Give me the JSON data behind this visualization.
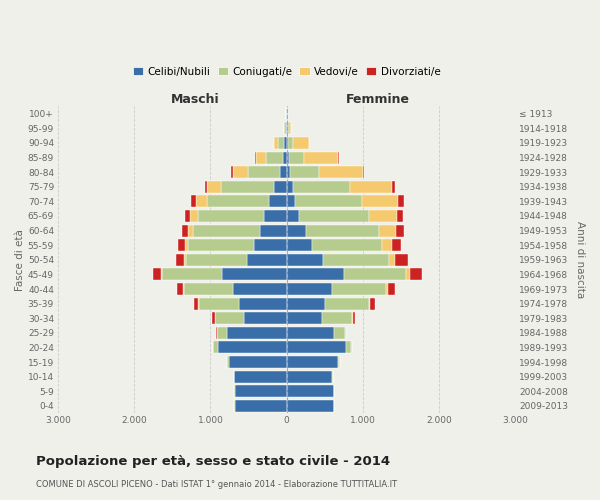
{
  "age_groups": [
    "0-4",
    "5-9",
    "10-14",
    "15-19",
    "20-24",
    "25-29",
    "30-34",
    "35-39",
    "40-44",
    "45-49",
    "50-54",
    "55-59",
    "60-64",
    "65-69",
    "70-74",
    "75-79",
    "80-84",
    "85-89",
    "90-94",
    "95-99",
    "100+"
  ],
  "birth_years": [
    "2009-2013",
    "2004-2008",
    "1999-2003",
    "1994-1998",
    "1989-1993",
    "1984-1988",
    "1979-1983",
    "1974-1978",
    "1969-1973",
    "1964-1968",
    "1959-1963",
    "1954-1958",
    "1949-1953",
    "1944-1948",
    "1939-1943",
    "1934-1938",
    "1929-1933",
    "1924-1928",
    "1919-1923",
    "1914-1918",
    "≤ 1913"
  ],
  "males": {
    "celibi": [
      680,
      680,
      690,
      760,
      900,
      780,
      560,
      620,
      700,
      850,
      520,
      430,
      350,
      290,
      230,
      160,
      80,
      50,
      30,
      10,
      5
    ],
    "coniugati": [
      5,
      5,
      5,
      20,
      60,
      130,
      380,
      530,
      650,
      780,
      800,
      860,
      880,
      870,
      820,
      700,
      430,
      220,
      80,
      20,
      5
    ],
    "vedovi": [
      0,
      0,
      0,
      2,
      5,
      5,
      5,
      10,
      15,
      20,
      30,
      40,
      70,
      110,
      140,
      180,
      200,
      130,
      50,
      10,
      2
    ],
    "divorziati": [
      0,
      0,
      0,
      2,
      5,
      10,
      30,
      60,
      80,
      110,
      100,
      100,
      80,
      70,
      60,
      30,
      15,
      10,
      5,
      0,
      0
    ]
  },
  "females": {
    "nubili": [
      620,
      620,
      600,
      670,
      780,
      620,
      460,
      510,
      600,
      760,
      480,
      330,
      250,
      160,
      110,
      80,
      40,
      30,
      20,
      10,
      5
    ],
    "coniugate": [
      5,
      5,
      5,
      25,
      70,
      150,
      400,
      570,
      700,
      810,
      870,
      930,
      960,
      920,
      880,
      750,
      380,
      200,
      70,
      20,
      5
    ],
    "vedove": [
      0,
      0,
      0,
      2,
      5,
      5,
      10,
      20,
      30,
      50,
      80,
      130,
      230,
      370,
      480,
      550,
      580,
      450,
      200,
      30,
      5
    ],
    "divorziate": [
      0,
      0,
      0,
      2,
      5,
      10,
      30,
      60,
      100,
      160,
      160,
      120,
      100,
      80,
      70,
      40,
      20,
      10,
      5,
      0,
      0
    ]
  },
  "colors": {
    "celibi": "#3a6ea8",
    "coniugati": "#b5cc8e",
    "vedovi": "#f5c96e",
    "divorziati": "#cc2222"
  },
  "title": "Popolazione per età, sesso e stato civile - 2014",
  "subtitle": "COMUNE DI ASCOLI PICENO - Dati ISTAT 1° gennaio 2014 - Elaborazione TUTTITALIA.IT",
  "label_maschi": "Maschi",
  "label_femmine": "Femmine",
  "ylabel_left": "Fasce di età",
  "ylabel_right": "Anni di nascita",
  "xlim": 3000,
  "legend_labels": [
    "Celibi/Nubili",
    "Coniugati/e",
    "Vedovi/e",
    "Divorziati/e"
  ],
  "bg_color": "#f0f0eb",
  "grid_color": "#cccccc",
  "tick_color": "#666666"
}
